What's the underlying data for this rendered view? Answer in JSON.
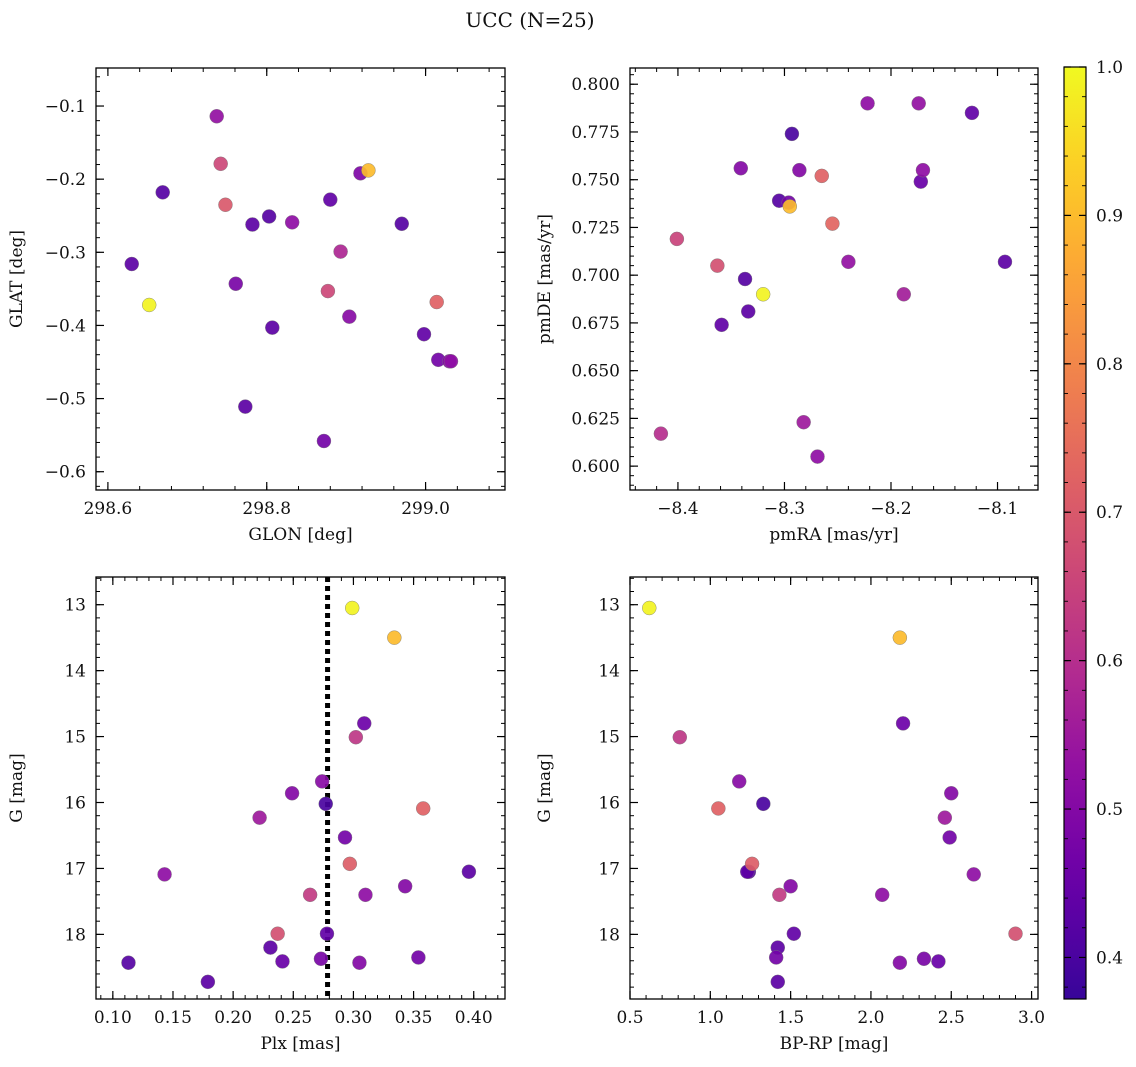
{
  "figure": {
    "title": "UCC (N=25)"
  },
  "chart_data": [
    {
      "type": "scatter",
      "panel": "top-left",
      "xlabel": "GLON [deg]",
      "ylabel": "GLAT [deg]",
      "xlim": [
        298.585,
        299.1
      ],
      "ylim": [
        -0.625,
        -0.048
      ],
      "y_inverted": false,
      "xticks": [
        298.6,
        298.8,
        299.0
      ],
      "xtick_labels": [
        "298.6",
        "298.8",
        "299.0"
      ],
      "yticks": [
        -0.6,
        -0.5,
        -0.4,
        -0.3,
        -0.2,
        -0.1
      ],
      "ytick_labels": [
        "−0.6",
        "−0.5",
        "−0.4",
        "−0.3",
        "−0.2",
        "−0.1"
      ],
      "points": [
        {
          "x": 298.737,
          "y": -0.114,
          "c": 0.53
        },
        {
          "x": 298.742,
          "y": -0.179,
          "c": 0.66
        },
        {
          "x": 298.748,
          "y": -0.235,
          "c": 0.7
        },
        {
          "x": 298.669,
          "y": -0.218,
          "c": 0.42
        },
        {
          "x": 298.782,
          "y": -0.262,
          "c": 0.43
        },
        {
          "x": 298.803,
          "y": -0.251,
          "c": 0.42
        },
        {
          "x": 298.832,
          "y": -0.259,
          "c": 0.52
        },
        {
          "x": 298.88,
          "y": -0.228,
          "c": 0.44
        },
        {
          "x": 298.918,
          "y": -0.192,
          "c": 0.49
        },
        {
          "x": 298.928,
          "y": -0.188,
          "c": 0.9
        },
        {
          "x": 298.97,
          "y": -0.261,
          "c": 0.42
        },
        {
          "x": 298.63,
          "y": -0.316,
          "c": 0.43
        },
        {
          "x": 298.652,
          "y": -0.372,
          "c": 0.99
        },
        {
          "x": 298.761,
          "y": -0.343,
          "c": 0.48
        },
        {
          "x": 298.893,
          "y": -0.299,
          "c": 0.58
        },
        {
          "x": 298.877,
          "y": -0.353,
          "c": 0.66
        },
        {
          "x": 298.807,
          "y": -0.403,
          "c": 0.43
        },
        {
          "x": 298.904,
          "y": -0.388,
          "c": 0.51
        },
        {
          "x": 299.014,
          "y": -0.368,
          "c": 0.72
        },
        {
          "x": 298.998,
          "y": -0.412,
          "c": 0.44
        },
        {
          "x": 299.016,
          "y": -0.447,
          "c": 0.47
        },
        {
          "x": 299.032,
          "y": -0.449,
          "c": 0.52
        },
        {
          "x": 299.03,
          "y": -0.449,
          "c": 0.5
        },
        {
          "x": 298.773,
          "y": -0.511,
          "c": 0.43
        },
        {
          "x": 298.872,
          "y": -0.558,
          "c": 0.47
        }
      ]
    },
    {
      "type": "scatter",
      "panel": "top-right",
      "xlabel": "pmRA [mas/yr]",
      "ylabel": "pmDE [mas/yr]",
      "xlim": [
        -8.445,
        -8.062
      ],
      "ylim": [
        0.5875,
        0.8085
      ],
      "y_inverted": false,
      "xticks": [
        -8.4,
        -8.3,
        -8.2,
        -8.1
      ],
      "xtick_labels": [
        "−8.4",
        "−8.3",
        "−8.2",
        "−8.1"
      ],
      "yticks": [
        0.6,
        0.625,
        0.65,
        0.675,
        0.7,
        0.725,
        0.75,
        0.775,
        0.8
      ],
      "ytick_labels": [
        "0.600",
        "0.625",
        "0.650",
        "0.675",
        "0.700",
        "0.725",
        "0.750",
        "0.775",
        "0.800"
      ],
      "points": [
        {
          "x": -8.222,
          "y": 0.79,
          "c": 0.52
        },
        {
          "x": -8.174,
          "y": 0.79,
          "c": 0.53
        },
        {
          "x": -8.124,
          "y": 0.785,
          "c": 0.44
        },
        {
          "x": -8.293,
          "y": 0.774,
          "c": 0.4
        },
        {
          "x": -8.341,
          "y": 0.756,
          "c": 0.5
        },
        {
          "x": -8.286,
          "y": 0.755,
          "c": 0.5
        },
        {
          "x": -8.265,
          "y": 0.752,
          "c": 0.72
        },
        {
          "x": -8.17,
          "y": 0.755,
          "c": 0.52
        },
        {
          "x": -8.172,
          "y": 0.749,
          "c": 0.45
        },
        {
          "x": -8.305,
          "y": 0.739,
          "c": 0.42
        },
        {
          "x": -8.296,
          "y": 0.738,
          "c": 0.47
        },
        {
          "x": -8.295,
          "y": 0.736,
          "c": 0.9
        },
        {
          "x": -8.255,
          "y": 0.727,
          "c": 0.73
        },
        {
          "x": -8.401,
          "y": 0.719,
          "c": 0.65
        },
        {
          "x": -8.24,
          "y": 0.707,
          "c": 0.53
        },
        {
          "x": -8.363,
          "y": 0.705,
          "c": 0.68
        },
        {
          "x": -8.337,
          "y": 0.698,
          "c": 0.42
        },
        {
          "x": -8.093,
          "y": 0.707,
          "c": 0.43
        },
        {
          "x": -8.32,
          "y": 0.69,
          "c": 0.99
        },
        {
          "x": -8.188,
          "y": 0.69,
          "c": 0.56
        },
        {
          "x": -8.359,
          "y": 0.674,
          "c": 0.44
        },
        {
          "x": -8.334,
          "y": 0.681,
          "c": 0.43
        },
        {
          "x": -8.282,
          "y": 0.623,
          "c": 0.55
        },
        {
          "x": -8.416,
          "y": 0.617,
          "c": 0.6
        },
        {
          "x": -8.269,
          "y": 0.605,
          "c": 0.52
        }
      ]
    },
    {
      "type": "scatter",
      "panel": "bottom-left",
      "xlabel": "Plx [mas]",
      "ylabel": "G [mag]",
      "xlim": [
        0.086,
        0.426
      ],
      "ylim": [
        12.58,
        18.98
      ],
      "y_inverted": true,
      "xticks": [
        0.1,
        0.15,
        0.2,
        0.25,
        0.3,
        0.35,
        0.4
      ],
      "xtick_labels": [
        "0.10",
        "0.15",
        "0.20",
        "0.25",
        "0.30",
        "0.35",
        "0.40"
      ],
      "yticks": [
        13,
        14,
        15,
        16,
        17,
        18
      ],
      "ytick_labels": [
        "13",
        "14",
        "15",
        "16",
        "17",
        "18"
      ],
      "vline": {
        "x": 0.2785,
        "style": "dotted",
        "color": "#000000"
      },
      "points": [
        {
          "x": 0.299,
          "y": 13.05,
          "c": 0.99
        },
        {
          "x": 0.334,
          "y": 13.5,
          "c": 0.9
        },
        {
          "x": 0.309,
          "y": 14.8,
          "c": 0.46
        },
        {
          "x": 0.302,
          "y": 15.01,
          "c": 0.62
        },
        {
          "x": 0.274,
          "y": 15.68,
          "c": 0.51
        },
        {
          "x": 0.249,
          "y": 15.86,
          "c": 0.5
        },
        {
          "x": 0.277,
          "y": 16.02,
          "c": 0.4
        },
        {
          "x": 0.358,
          "y": 16.09,
          "c": 0.72
        },
        {
          "x": 0.222,
          "y": 16.23,
          "c": 0.55
        },
        {
          "x": 0.293,
          "y": 16.53,
          "c": 0.47
        },
        {
          "x": 0.297,
          "y": 16.93,
          "c": 0.71
        },
        {
          "x": 0.396,
          "y": 17.05,
          "c": 0.43
        },
        {
          "x": 0.143,
          "y": 17.09,
          "c": 0.52
        },
        {
          "x": 0.343,
          "y": 17.27,
          "c": 0.5
        },
        {
          "x": 0.264,
          "y": 17.4,
          "c": 0.63
        },
        {
          "x": 0.31,
          "y": 17.4,
          "c": 0.52
        },
        {
          "x": 0.237,
          "y": 17.99,
          "c": 0.68
        },
        {
          "x": 0.278,
          "y": 17.99,
          "c": 0.44
        },
        {
          "x": 0.231,
          "y": 18.2,
          "c": 0.43
        },
        {
          "x": 0.354,
          "y": 18.35,
          "c": 0.47
        },
        {
          "x": 0.273,
          "y": 18.37,
          "c": 0.48
        },
        {
          "x": 0.241,
          "y": 18.41,
          "c": 0.45
        },
        {
          "x": 0.113,
          "y": 18.43,
          "c": 0.42
        },
        {
          "x": 0.305,
          "y": 18.43,
          "c": 0.5
        },
        {
          "x": 0.179,
          "y": 18.72,
          "c": 0.43
        }
      ]
    },
    {
      "type": "scatter",
      "panel": "bottom-right",
      "xlabel": "BP-RP [mag]",
      "ylabel": "G [mag]",
      "xlim": [
        0.5,
        3.04
      ],
      "ylim": [
        12.58,
        18.98
      ],
      "y_inverted": true,
      "xticks": [
        0.5,
        1.0,
        1.5,
        2.0,
        2.5,
        3.0
      ],
      "xtick_labels": [
        "0.5",
        "1.0",
        "1.5",
        "2.0",
        "2.5",
        "3.0"
      ],
      "yticks": [
        13,
        14,
        15,
        16,
        17,
        18
      ],
      "ytick_labels": [
        "13",
        "14",
        "15",
        "16",
        "17",
        "18"
      ],
      "points": [
        {
          "x": 0.62,
          "y": 13.05,
          "c": 0.99
        },
        {
          "x": 2.18,
          "y": 13.5,
          "c": 0.9
        },
        {
          "x": 2.2,
          "y": 14.8,
          "c": 0.46
        },
        {
          "x": 0.81,
          "y": 15.01,
          "c": 0.62
        },
        {
          "x": 1.18,
          "y": 15.68,
          "c": 0.51
        },
        {
          "x": 2.5,
          "y": 15.86,
          "c": 0.5
        },
        {
          "x": 1.33,
          "y": 16.02,
          "c": 0.4
        },
        {
          "x": 1.05,
          "y": 16.09,
          "c": 0.72
        },
        {
          "x": 2.46,
          "y": 16.23,
          "c": 0.55
        },
        {
          "x": 2.49,
          "y": 16.53,
          "c": 0.47
        },
        {
          "x": 1.26,
          "y": 16.93,
          "c": 0.71
        },
        {
          "x": 1.23,
          "y": 17.05,
          "c": 0.43
        },
        {
          "x": 2.64,
          "y": 17.09,
          "c": 0.52
        },
        {
          "x": 1.5,
          "y": 17.27,
          "c": 0.5
        },
        {
          "x": 1.43,
          "y": 17.4,
          "c": 0.63
        },
        {
          "x": 2.07,
          "y": 17.4,
          "c": 0.52
        },
        {
          "x": 2.9,
          "y": 17.99,
          "c": 0.68
        },
        {
          "x": 1.52,
          "y": 17.99,
          "c": 0.44
        },
        {
          "x": 1.42,
          "y": 18.2,
          "c": 0.43
        },
        {
          "x": 1.41,
          "y": 18.35,
          "c": 0.47
        },
        {
          "x": 2.33,
          "y": 18.37,
          "c": 0.48
        },
        {
          "x": 2.42,
          "y": 18.41,
          "c": 0.45
        },
        {
          "x": 2.18,
          "y": 18.43,
          "c": 0.5
        },
        {
          "x": 1.42,
          "y": 18.72,
          "c": 0.43
        },
        {
          "x": 1.24,
          "y": 17.05,
          "c": 0.42
        }
      ]
    }
  ],
  "colorbar": {
    "colormap": "plasma",
    "range": [
      0.372,
      1.0
    ],
    "ticks": [
      0.4,
      0.5,
      0.6,
      0.7,
      0.8,
      0.9,
      1.0
    ],
    "tick_labels": [
      "0.4",
      "0.5",
      "0.6",
      "0.7",
      "0.8",
      "0.9",
      "1.0"
    ]
  }
}
